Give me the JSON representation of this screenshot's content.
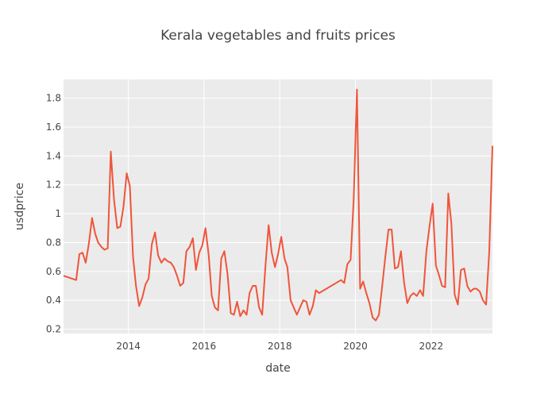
{
  "chart_data": {
    "type": "line",
    "title": "Kerala vegetables and fruits prices",
    "xlabel": "date",
    "ylabel": "usdprice",
    "xlim": [
      "2012-04-15",
      "2023-08-15"
    ],
    "ylim": [
      0.17,
      1.93
    ],
    "x_ticks": [
      "2014",
      "2016",
      "2018",
      "2020",
      "2022"
    ],
    "y_ticks": [
      "0.2",
      "0.4",
      "0.6",
      "0.8",
      "1",
      "1.2",
      "1.4",
      "1.6",
      "1.8"
    ],
    "grid": true,
    "legend": "none",
    "colors": {
      "series": "#ef553b",
      "plot_bg": "#ebebeb",
      "grid": "#ffffff",
      "paper_bg": "#ffffff"
    },
    "series": [
      {
        "x": [
          "2012-04-15",
          "2012-08-15",
          "2012-09-15",
          "2012-10-15",
          "2012-11-15",
          "2012-12-15",
          "2013-01-15",
          "2013-02-15",
          "2013-03-15",
          "2013-04-15",
          "2013-05-15",
          "2013-06-15",
          "2013-07-15",
          "2013-08-15",
          "2013-09-15",
          "2013-10-15",
          "2013-11-15",
          "2013-12-15",
          "2014-01-15",
          "2014-02-15",
          "2014-03-15",
          "2014-04-15",
          "2014-05-15",
          "2014-06-15",
          "2014-07-15",
          "2014-08-15",
          "2014-09-15",
          "2014-10-15",
          "2014-11-15",
          "2014-12-15",
          "2015-01-15",
          "2015-02-15",
          "2015-03-15",
          "2015-04-15",
          "2015-05-15",
          "2015-06-15",
          "2015-07-15",
          "2015-08-15",
          "2015-09-15",
          "2015-10-15",
          "2015-11-15",
          "2015-12-15",
          "2016-01-15",
          "2016-02-15",
          "2016-03-15",
          "2016-04-15",
          "2016-05-15",
          "2016-06-15",
          "2016-07-15",
          "2016-08-15",
          "2016-09-15",
          "2016-10-15",
          "2016-11-15",
          "2016-12-15",
          "2017-01-15",
          "2017-02-15",
          "2017-03-15",
          "2017-04-15",
          "2017-05-15",
          "2017-06-15",
          "2017-07-15",
          "2017-08-15",
          "2017-09-15",
          "2017-10-15",
          "2017-11-15",
          "2017-12-15",
          "2018-01-15",
          "2018-02-15",
          "2018-03-15",
          "2018-04-15",
          "2018-05-15",
          "2018-06-15",
          "2018-07-15",
          "2018-08-15",
          "2018-09-15",
          "2018-10-15",
          "2018-11-15",
          "2018-12-15",
          "2019-01-15",
          "2019-08-15",
          "2019-09-15",
          "2019-10-15",
          "2019-11-15",
          "2019-12-15",
          "2020-01-15",
          "2020-02-15",
          "2020-03-15",
          "2020-04-15",
          "2020-05-15",
          "2020-06-15",
          "2020-07-15",
          "2020-08-15",
          "2020-09-15",
          "2020-10-15",
          "2020-11-15",
          "2020-12-15",
          "2021-01-15",
          "2021-02-15",
          "2021-03-15",
          "2021-04-15",
          "2021-05-15",
          "2021-06-15",
          "2021-07-15",
          "2021-08-15",
          "2021-09-15",
          "2021-10-15",
          "2021-11-15",
          "2021-12-15",
          "2022-01-15",
          "2022-02-15",
          "2022-03-15",
          "2022-04-15",
          "2022-05-15",
          "2022-06-15",
          "2022-07-15",
          "2022-08-15",
          "2022-09-15",
          "2022-10-15",
          "2022-11-15",
          "2022-12-15",
          "2023-01-15",
          "2023-02-15",
          "2023-03-15",
          "2023-04-15",
          "2023-05-15",
          "2023-06-15",
          "2023-07-15",
          "2023-08-15"
        ],
        "y": [
          0.57,
          0.54,
          0.72,
          0.73,
          0.66,
          0.79,
          0.97,
          0.86,
          0.8,
          0.77,
          0.75,
          0.76,
          1.43,
          1.1,
          0.9,
          0.91,
          1.05,
          1.28,
          1.19,
          0.7,
          0.5,
          0.36,
          0.42,
          0.51,
          0.55,
          0.79,
          0.87,
          0.71,
          0.66,
          0.69,
          0.67,
          0.66,
          0.63,
          0.57,
          0.5,
          0.52,
          0.74,
          0.77,
          0.83,
          0.61,
          0.73,
          0.78,
          0.9,
          0.71,
          0.43,
          0.35,
          0.33,
          0.69,
          0.74,
          0.58,
          0.31,
          0.3,
          0.39,
          0.29,
          0.33,
          0.3,
          0.45,
          0.5,
          0.5,
          0.35,
          0.3,
          0.63,
          0.92,
          0.73,
          0.63,
          0.72,
          0.84,
          0.69,
          0.63,
          0.4,
          0.35,
          0.3,
          0.35,
          0.4,
          0.39,
          0.3,
          0.36,
          0.47,
          0.45,
          0.54,
          0.52,
          0.65,
          0.68,
          1.1,
          1.86,
          0.48,
          0.53,
          0.45,
          0.38,
          0.28,
          0.26,
          0.3,
          0.5,
          0.7,
          0.89,
          0.89,
          0.62,
          0.63,
          0.74,
          0.52,
          0.38,
          0.43,
          0.45,
          0.43,
          0.47,
          0.43,
          0.74,
          0.91,
          1.07,
          0.64,
          0.58,
          0.5,
          0.49,
          1.14,
          0.93,
          0.44,
          0.37,
          0.61,
          0.62,
          0.5,
          0.46,
          0.48,
          0.48,
          0.46,
          0.4,
          0.37,
          0.74,
          1.47
        ]
      }
    ]
  }
}
